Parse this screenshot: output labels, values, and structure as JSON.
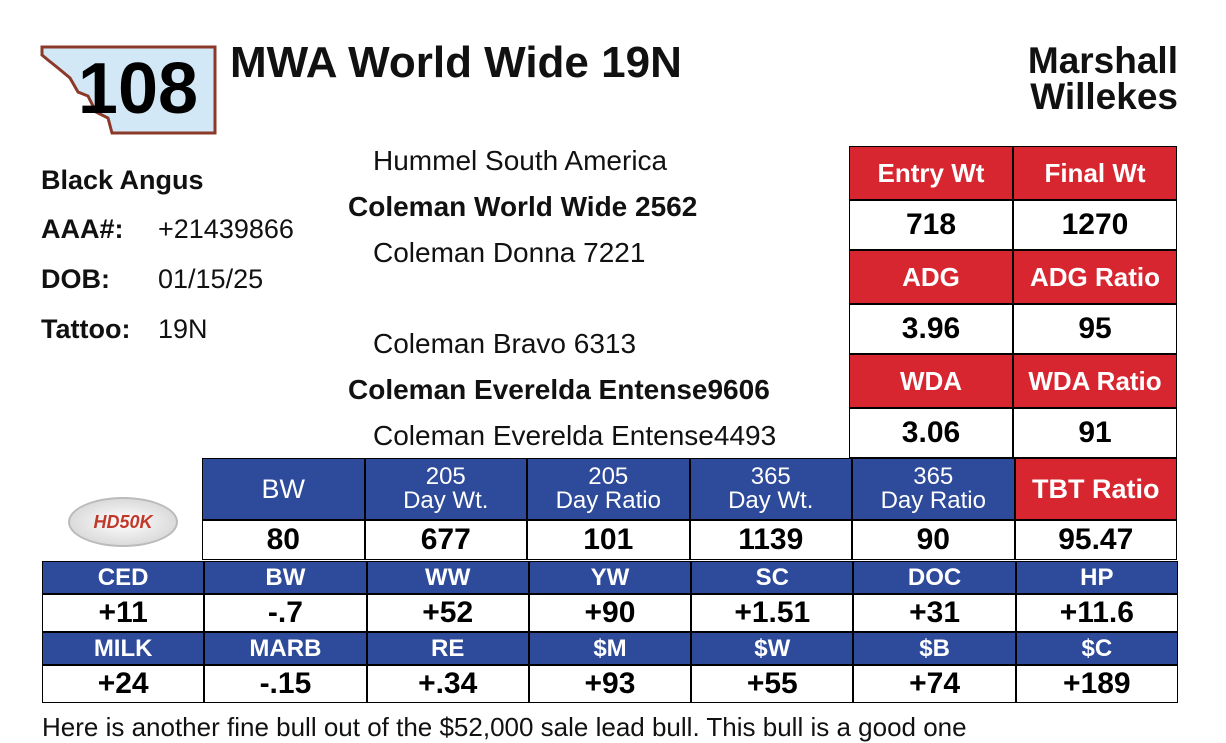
{
  "lot": "108",
  "title": "MWA World Wide 19N",
  "consignor": [
    "Marshall",
    "Willekes"
  ],
  "info": {
    "breed": "Black Angus",
    "fields": [
      {
        "label": "AAA#:",
        "value": "+21439866"
      },
      {
        "label": "DOB:",
        "value": "01/15/25"
      },
      {
        "label": "Tattoo:",
        "value": "19N"
      }
    ]
  },
  "pedigree": {
    "sire_sire": "Hummel South America",
    "sire": "Coleman World Wide 2562",
    "sire_dam": "Coleman Donna 7221",
    "dam_sire": "Coleman Bravo 6313",
    "dam": "Coleman Everelda Entense9606",
    "dam_dam": "Coleman Everelda Entense4493"
  },
  "performance": [
    [
      {
        "label": "Entry Wt",
        "value": "718"
      },
      {
        "label": "Final Wt",
        "value": "1270"
      }
    ],
    [
      {
        "label": "ADG",
        "value": "3.96"
      },
      {
        "label": "ADG Ratio",
        "value": "95"
      }
    ],
    [
      {
        "label": "WDA",
        "value": "3.06"
      },
      {
        "label": "WDA Ratio",
        "value": "91"
      }
    ]
  ],
  "logo": "HD50K",
  "weights": [
    {
      "label": [
        "BW"
      ],
      "value": "80"
    },
    {
      "label": [
        "205",
        "Day Wt."
      ],
      "value": "677"
    },
    {
      "label": [
        "205",
        "Day Ratio"
      ],
      "value": "101"
    },
    {
      "label": [
        "365",
        "Day Wt."
      ],
      "value": "1139"
    },
    {
      "label": [
        "365",
        "Day Ratio"
      ],
      "value": "90"
    },
    {
      "label": [
        "TBT Ratio"
      ],
      "value": "95.47"
    }
  ],
  "epds": [
    [
      {
        "label": "CED",
        "value": "+11"
      },
      {
        "label": "BW",
        "value": "-.7"
      },
      {
        "label": "WW",
        "value": "+52"
      },
      {
        "label": "YW",
        "value": "+90"
      },
      {
        "label": "SC",
        "value": "+1.51"
      },
      {
        "label": "DOC",
        "value": "+31"
      },
      {
        "label": "HP",
        "value": "+11.6"
      }
    ],
    [
      {
        "label": "MILK",
        "value": "+24"
      },
      {
        "label": "MARB",
        "value": "-.15"
      },
      {
        "label": "RE",
        "value": "+.34"
      },
      {
        "label": "$M",
        "value": "+93"
      },
      {
        "label": "$W",
        "value": "+55"
      },
      {
        "label": "$B",
        "value": "+74"
      },
      {
        "label": "$C",
        "value": "+189"
      }
    ]
  ],
  "footnote": "Here is another fine bull out of the $52,000 sale lead bull. This bull is a good one"
}
